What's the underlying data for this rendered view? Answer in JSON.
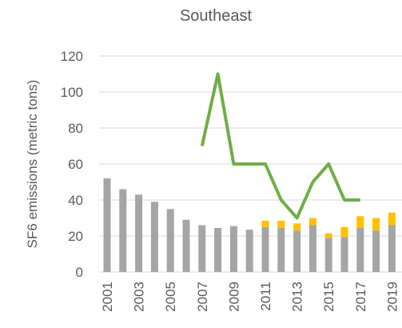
{
  "chart_data": {
    "type": "bar",
    "title": "Southeast",
    "y_label": "SF6 emissions (metric tons)",
    "categories": [
      "2001",
      null,
      "2003",
      null,
      "2005",
      null,
      "2007",
      null,
      "2009",
      null,
      "2011",
      null,
      "2013",
      null,
      "2015",
      null,
      "2017",
      null,
      "2019"
    ],
    "series": [
      {
        "type": "bar",
        "color": "#a5a5a5",
        "values": [
          52,
          46,
          43,
          39,
          35,
          29,
          26,
          24.5,
          25.5,
          23.5,
          25,
          24.5,
          23,
          26,
          19,
          19.5,
          24.5,
          23,
          26
        ]
      },
      {
        "type": "bar",
        "color": "#ffc000",
        "values": [
          0,
          0,
          0,
          0,
          0,
          0,
          0,
          0,
          0,
          0,
          3.5,
          4,
          4,
          4,
          2.5,
          5.5,
          6.5,
          7,
          7
        ]
      },
      {
        "type": "line",
        "color": "#70ad47",
        "values": [
          null,
          null,
          null,
          null,
          null,
          null,
          70,
          110,
          60,
          60,
          60,
          40,
          30,
          50,
          60,
          40,
          40,
          null,
          null
        ]
      }
    ],
    "ylim": [
      0,
      120
    ],
    "yticks": [
      0,
      20,
      40,
      60,
      80,
      100,
      120
    ],
    "grid": true
  }
}
